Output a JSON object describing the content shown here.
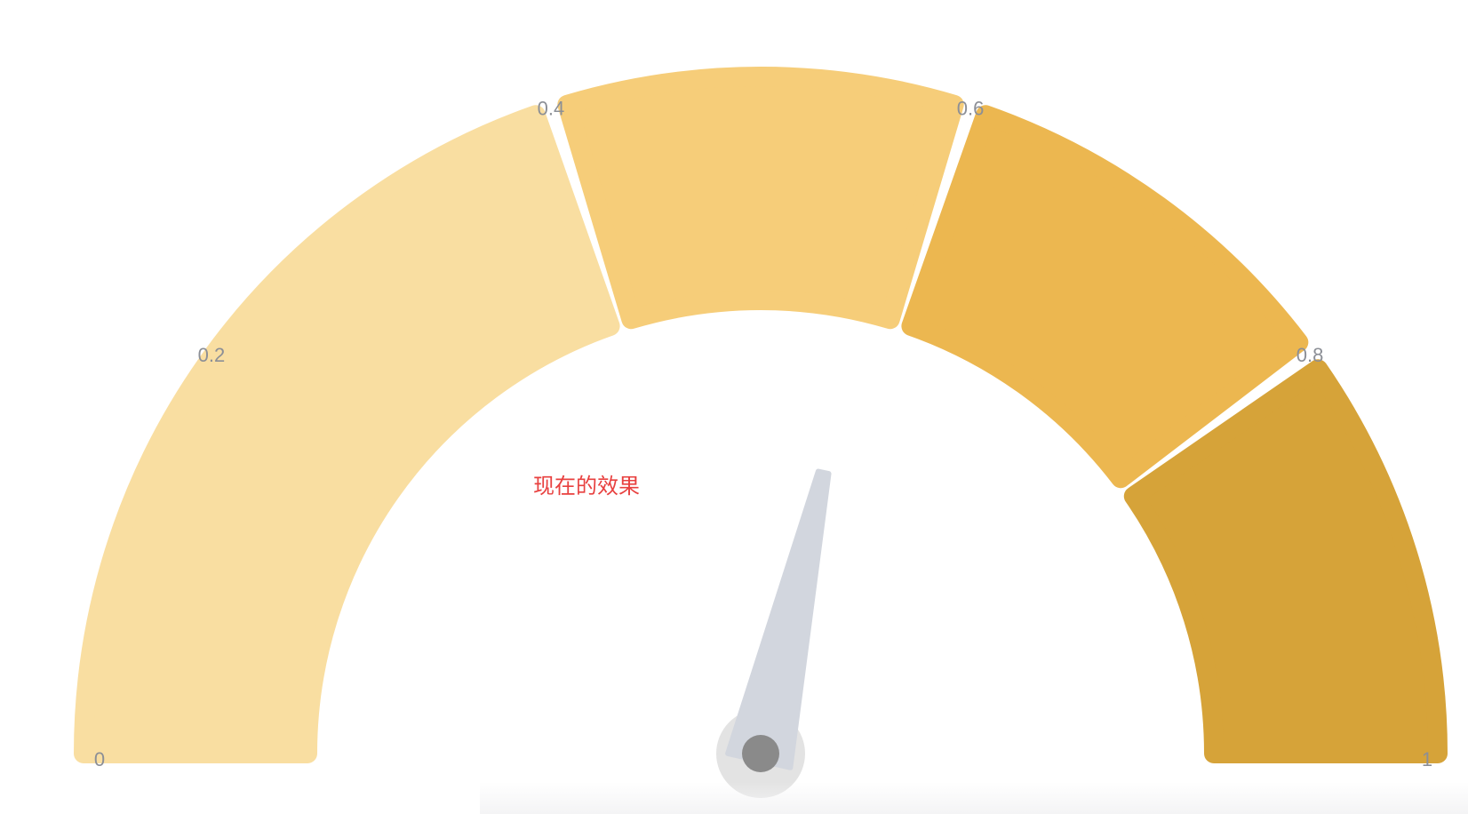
{
  "chart_data": {
    "type": "gauge",
    "min": 0,
    "max": 1,
    "value": 0.57,
    "ticks": [
      "0",
      "0.2",
      "0.4",
      "0.6",
      "0.8",
      "1"
    ],
    "tick_values": [
      0,
      0.2,
      0.4,
      0.6,
      0.8,
      1
    ],
    "bands": [
      {
        "from": 0.0,
        "to": 0.4,
        "color": "#f9dea1"
      },
      {
        "from": 0.4,
        "to": 0.6,
        "color": "#f6cd79"
      },
      {
        "from": 0.6,
        "to": 0.8,
        "color": "#ecb750"
      },
      {
        "from": 0.8,
        "to": 1.0,
        "color": "#d6a339"
      }
    ],
    "pointer_color": "#d2d6de",
    "hub_color": "#8a8a8a",
    "hub_ring_color": "#dcdcdc",
    "annotation": "现在的效果",
    "annotation_color": "#e8403f"
  }
}
